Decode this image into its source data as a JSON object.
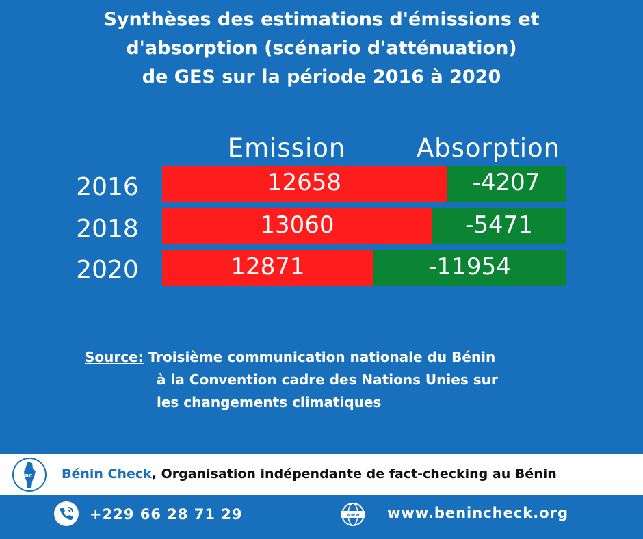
{
  "title_lines": [
    "Synthèses des estimations d'émissions et",
    "d'absorption (scénario d'atténuation)",
    "de GES sur la période 2016 à 2020"
  ],
  "chart_data": {
    "type": "bar",
    "title": "Synthèses des estimations d'émissions et d'absorption (scénario d'atténuation) de GES sur la période 2016 à 2020",
    "categories": [
      "2016",
      "2018",
      "2020"
    ],
    "series": [
      {
        "name": "Emission",
        "values": [
          12658,
          13060,
          12871
        ],
        "labels": [
          "12658",
          "13060",
          "12871"
        ],
        "color": "#ff1c1c"
      },
      {
        "name": "Absorption",
        "values": [
          -4207,
          -5471,
          -11954
        ],
        "labels": [
          "-4207",
          "-5471",
          "-11954"
        ],
        "color": "#0b8433"
      }
    ],
    "stacked": true,
    "orientation": "horizontal"
  },
  "source": {
    "label": "Source:",
    "lines": [
      "Troisième communication nationale du Bénin",
      "à la Convention cadre des Nations Unies sur",
      "les changements climatiques"
    ]
  },
  "footer": {
    "brand": "Bénin Check",
    "tagline": ", Organisation indépendante de fact-checking au Bénin",
    "logo_icon": "benin-map-logo-icon",
    "logo_text": "BC"
  },
  "contact": {
    "phone_icon": "phone-icon",
    "phone": "+229 66 28 71 29",
    "web_icon": "globe-www-icon",
    "web_icon_text": "www",
    "website": "www.benincheck.org"
  },
  "colors": {
    "background": "#1870bd",
    "emission": "#ff1c1c",
    "absorption": "#0b8433",
    "text": "#ffffff",
    "footer_bg": "#ffffff"
  }
}
